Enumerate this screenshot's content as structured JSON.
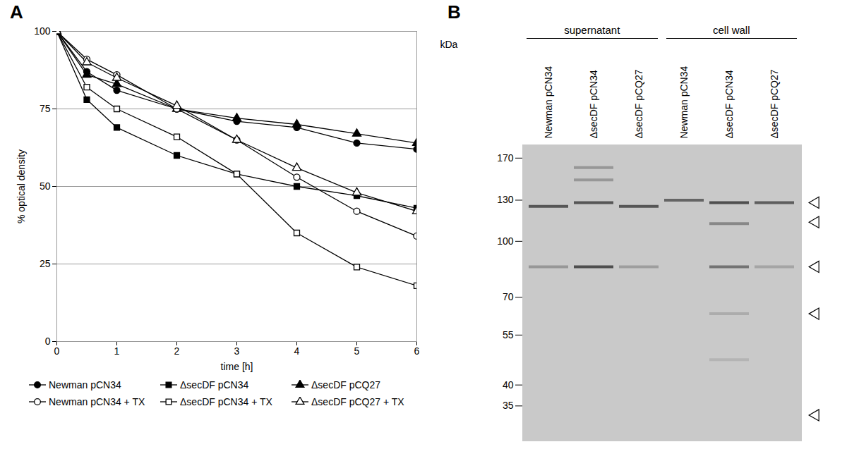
{
  "chart_data": [
    {
      "type": "line",
      "panel": "A",
      "xlabel": "time [h]",
      "ylabel": "% optical density",
      "x": [
        0,
        0.5,
        1,
        2,
        3,
        4,
        5,
        6
      ],
      "xlim": [
        0,
        6
      ],
      "xticks": [
        0,
        1,
        2,
        3,
        4,
        5,
        6
      ],
      "ylim": [
        0,
        100
      ],
      "yticks": [
        0,
        25,
        50,
        75,
        100
      ],
      "grid": true,
      "series": [
        {
          "name": "Newman pCN34",
          "color": "#000000",
          "marker": "filled circle",
          "values": [
            100,
            87,
            81,
            75,
            71,
            69,
            64,
            62
          ]
        },
        {
          "name": "ΔsecDF pCN34",
          "color": "#000000",
          "marker": "filled square",
          "values": [
            100,
            78,
            69,
            60,
            54,
            50,
            47,
            43
          ]
        },
        {
          "name": "ΔsecDF pCQ27",
          "color": "#000000",
          "marker": "filled triangle",
          "values": [
            100,
            86,
            83,
            75,
            72,
            70,
            67,
            64
          ]
        },
        {
          "name": "Newman pCN34 + TX",
          "color": "#000000",
          "marker": "open circle",
          "values": [
            100,
            91,
            86,
            75,
            65,
            53,
            42,
            34
          ]
        },
        {
          "name": "ΔsecDF pCN34 + TX",
          "color": "#000000",
          "marker": "open square",
          "values": [
            100,
            82,
            75,
            66,
            54,
            35,
            24,
            18
          ]
        },
        {
          "name": "ΔsecDF pCQ27 + TX",
          "color": "#000000",
          "marker": "open triangle",
          "values": [
            100,
            90,
            85,
            76,
            65,
            56,
            48,
            42
          ]
        }
      ]
    },
    {
      "type": "gel",
      "panel": "B",
      "ylabel": "kDa",
      "log": "y",
      "ylim": [
        28,
        185
      ],
      "yticks": [
        170,
        130,
        100,
        70,
        55,
        40,
        35
      ],
      "grid": false,
      "color": "#3a3a3a",
      "lanes": [
        {
          "group": "supernatant",
          "label": "Newman pCN34",
          "bands": [
            {
              "kDa": 125,
              "intensity": 0.8
            },
            {
              "kDa": 85,
              "intensity": 0.35
            }
          ]
        },
        {
          "group": "supernatant",
          "label": "ΔsecDF pCN34",
          "bands": [
            {
              "kDa": 160,
              "intensity": 0.35
            },
            {
              "kDa": 148,
              "intensity": 0.35
            },
            {
              "kDa": 128,
              "intensity": 0.8
            },
            {
              "kDa": 85,
              "intensity": 0.85
            }
          ]
        },
        {
          "group": "supernatant",
          "label": "ΔsecDF pCQ27",
          "bands": [
            {
              "kDa": 125,
              "intensity": 0.8
            },
            {
              "kDa": 85,
              "intensity": 0.3
            }
          ]
        },
        {
          "group": "cell wall",
          "label": "Newman pCN34",
          "bands": [
            {
              "kDa": 130,
              "intensity": 0.7
            }
          ]
        },
        {
          "group": "cell wall",
          "label": "ΔsecDF pCN34",
          "bands": [
            {
              "kDa": 128,
              "intensity": 0.85
            },
            {
              "kDa": 112,
              "intensity": 0.45
            },
            {
              "kDa": 85,
              "intensity": 0.6
            },
            {
              "kDa": 63,
              "intensity": 0.2
            },
            {
              "kDa": 47,
              "intensity": 0.15
            }
          ]
        },
        {
          "group": "cell wall",
          "label": "ΔsecDF pCQ27",
          "bands": [
            {
              "kDa": 128,
              "intensity": 0.75
            },
            {
              "kDa": 85,
              "intensity": 0.25
            }
          ]
        }
      ],
      "arrowheads": [
        128,
        113,
        85,
        63,
        33
      ]
    }
  ]
}
